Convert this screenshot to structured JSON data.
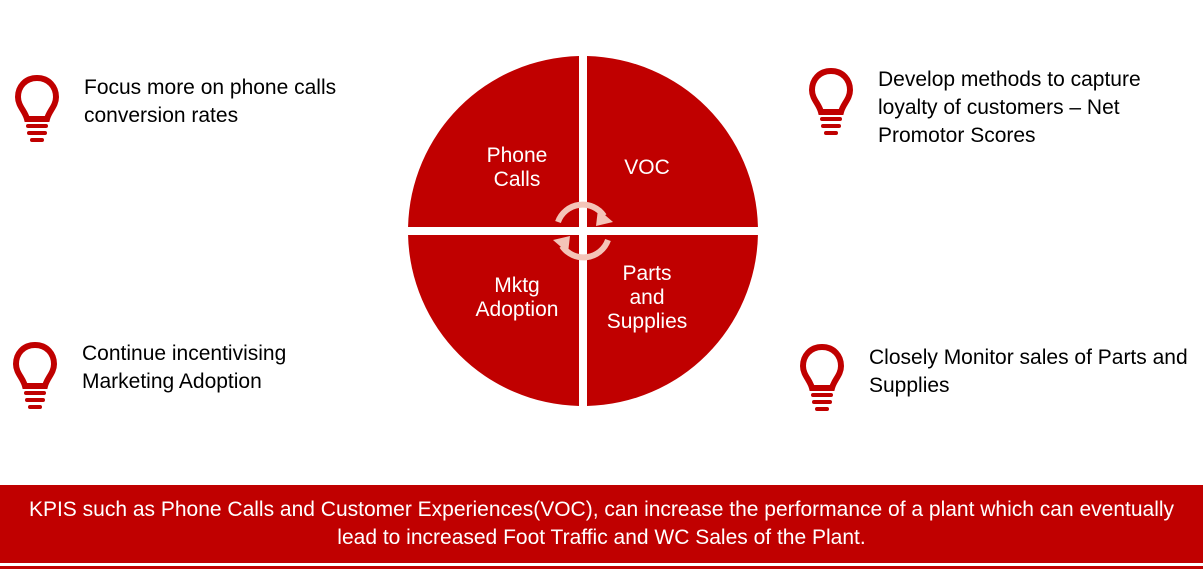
{
  "colors": {
    "accent": "#c00000",
    "arrow": "#f4c4b8"
  },
  "cycle": {
    "quadrants": [
      {
        "id": "phone",
        "label_lines": [
          "Phone",
          "Calls"
        ]
      },
      {
        "id": "voc",
        "label_lines": [
          "VOC"
        ]
      },
      {
        "id": "mktg",
        "label_lines": [
          "Mktg",
          "Adoption"
        ]
      },
      {
        "id": "parts",
        "label_lines": [
          "Parts",
          "and",
          "Supplies"
        ]
      }
    ],
    "center_icon": "refresh-cycle-arrows-icon"
  },
  "tips": [
    {
      "icon": "lightbulb-icon",
      "text": "Focus more on phone calls conversion rates"
    },
    {
      "icon": "lightbulb-icon",
      "text": "Develop methods to capture loyalty of customers – Net Promotor Scores"
    },
    {
      "icon": "lightbulb-icon",
      "text": "Continue incentivising Marketing Adoption"
    },
    {
      "icon": "lightbulb-icon",
      "text": "Closely Monitor sales of Parts and Supplies"
    }
  ],
  "banner": {
    "text": "KPIS such as Phone Calls and Customer Experiences(VOC), can increase the performance of a plant which can eventually lead to increased Foot Traffic and WC Sales of the Plant."
  }
}
